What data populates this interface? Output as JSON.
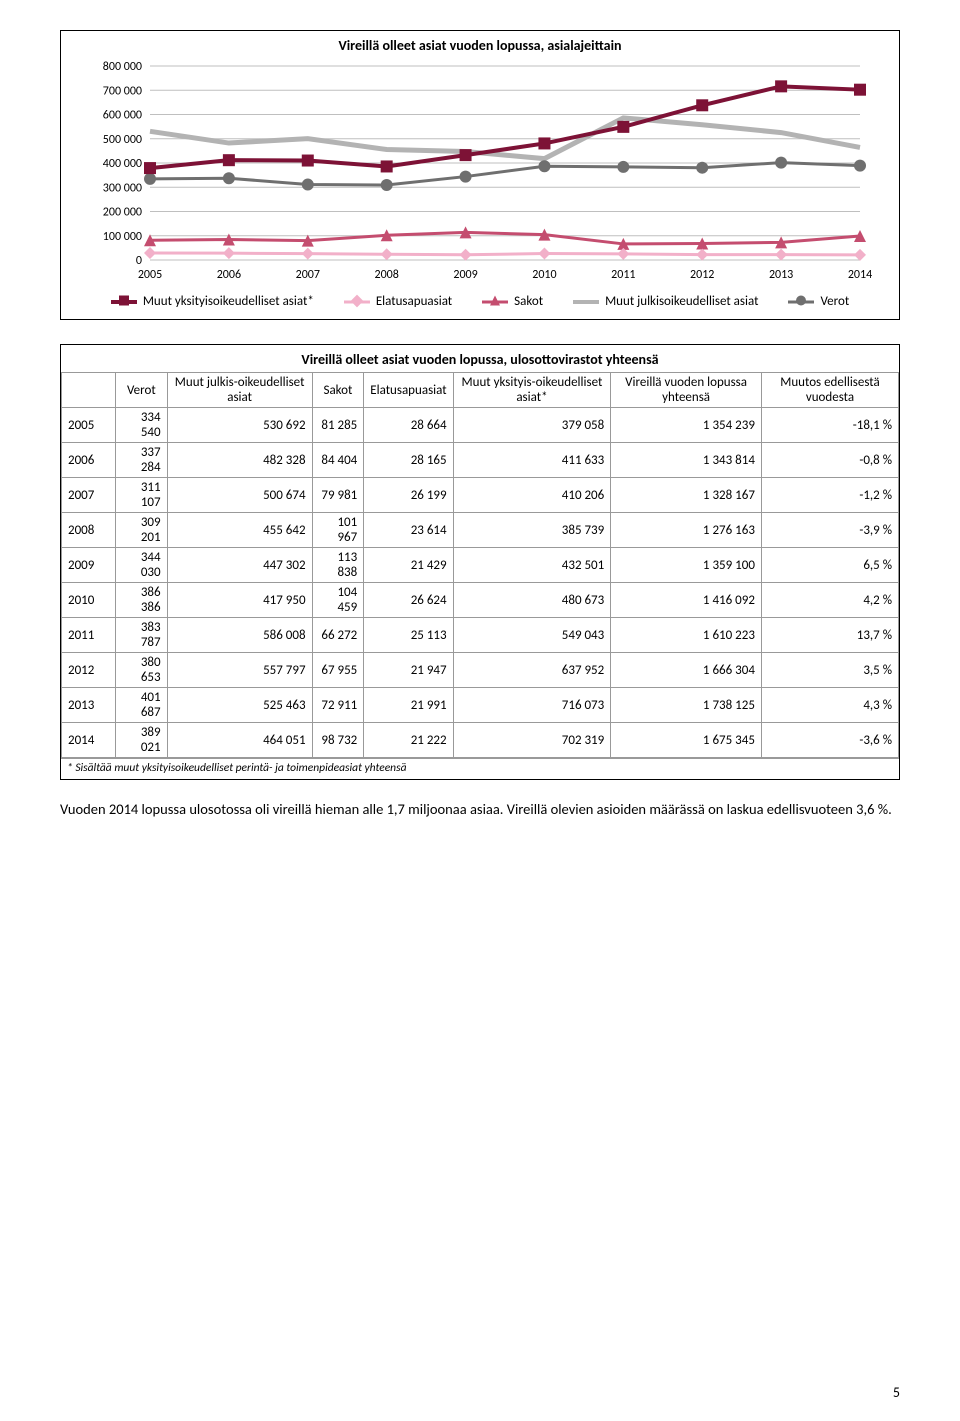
{
  "chart": {
    "title": "Vireillä olleet asiat vuoden lopussa, asialajeittain",
    "years": [
      "2005",
      "2006",
      "2007",
      "2008",
      "2009",
      "2010",
      "2011",
      "2012",
      "2013",
      "2014"
    ],
    "ylim": [
      0,
      800000
    ],
    "ytick_step": 100000,
    "ylabels": [
      "0",
      "100 000",
      "200 000",
      "300 000",
      "400 000",
      "500 000",
      "600 000",
      "700 000",
      "800 000"
    ],
    "grid_color": "#bfbfbf",
    "background_color": "#ffffff",
    "series": {
      "asiat_star": {
        "label": "Muut yksityisoikeudelliset asiat*",
        "color": "#7d1236",
        "marker": "square",
        "line_width": 4,
        "values": [
          379058,
          411633,
          410206,
          385739,
          432501,
          480673,
          549043,
          637952,
          716073,
          702319
        ]
      },
      "elatus": {
        "label": "Elatusapuasiat",
        "color": "#f2b0c9",
        "marker": "diamond",
        "line_width": 3,
        "values": [
          28664,
          28165,
          26199,
          23614,
          21429,
          26624,
          25113,
          21947,
          21991,
          21222
        ]
      },
      "sakot": {
        "label": "Sakot",
        "color": "#c44d6f",
        "marker": "triangle",
        "line_width": 3,
        "values": [
          81285,
          84404,
          79981,
          101967,
          113838,
          104459,
          66272,
          67955,
          72911,
          98732
        ]
      },
      "julkis": {
        "label": "Muut julkisoikeudelliset asiat",
        "color": "#b3b3b3",
        "marker": "none",
        "line_width": 5,
        "values": [
          530692,
          482328,
          500674,
          455642,
          447302,
          417950,
          586008,
          557797,
          525463,
          464051
        ]
      },
      "verot": {
        "label": "Verot",
        "color": "#6f6f6f",
        "marker": "circle",
        "line_width": 3,
        "values": [
          334540,
          337284,
          311107,
          309201,
          344030,
          386386,
          383787,
          380653,
          401687,
          389021
        ]
      }
    },
    "legend_order": [
      "asiat_star",
      "elatus",
      "sakot",
      "julkis",
      "verot"
    ]
  },
  "table": {
    "title": "Vireillä olleet asiat vuoden lopussa, ulosottovirastot yhteensä",
    "columns": [
      "Verot",
      "Muut julkis-oikeudelliset asiat",
      "Sakot",
      "Elatusapuasiat",
      "Muut yksityis-oikeudelliset asiat*",
      "Vireillä vuoden lopussa yhteensä",
      "Muutos edellisestä vuodesta"
    ],
    "rows": [
      {
        "year": "2005",
        "cells": [
          "334 540",
          "530 692",
          "81 285",
          "28 664",
          "379 058",
          "1 354 239",
          "-18,1 %"
        ]
      },
      {
        "year": "2006",
        "cells": [
          "337 284",
          "482 328",
          "84 404",
          "28 165",
          "411 633",
          "1 343 814",
          "-0,8 %"
        ]
      },
      {
        "year": "2007",
        "cells": [
          "311 107",
          "500 674",
          "79 981",
          "26 199",
          "410 206",
          "1 328 167",
          "-1,2 %"
        ]
      },
      {
        "year": "2008",
        "cells": [
          "309 201",
          "455 642",
          "101 967",
          "23 614",
          "385 739",
          "1 276 163",
          "-3,9 %"
        ]
      },
      {
        "year": "2009",
        "cells": [
          "344 030",
          "447 302",
          "113 838",
          "21 429",
          "432 501",
          "1 359 100",
          "6,5 %"
        ]
      },
      {
        "year": "2010",
        "cells": [
          "386 386",
          "417 950",
          "104 459",
          "26 624",
          "480 673",
          "1 416 092",
          "4,2 %"
        ]
      },
      {
        "year": "2011",
        "cells": [
          "383 787",
          "586 008",
          "66 272",
          "25 113",
          "549 043",
          "1 610 223",
          "13,7 %"
        ]
      },
      {
        "year": "2012",
        "cells": [
          "380 653",
          "557 797",
          "67 955",
          "21 947",
          "637 952",
          "1 666 304",
          "3,5 %"
        ]
      },
      {
        "year": "2013",
        "cells": [
          "401 687",
          "525 463",
          "72 911",
          "21 991",
          "716 073",
          "1 738 125",
          "4,3 %"
        ]
      },
      {
        "year": "2014",
        "cells": [
          "389 021",
          "464 051",
          "98 732",
          "21 222",
          "702 319",
          "1 675 345",
          "-3,6 %"
        ]
      }
    ],
    "footnote": "* Sisältää muut yksityisoikeudelliset perintä- ja toimenpideasiat yhteensä"
  },
  "body_text": "Vuoden 2014 lopussa ulosotossa oli vireillä hieman alle 1,7 miljoonaa asiaa. Vireillä olevien asioiden määrässä on laskua edellisvuoteen 3,6 %.",
  "pagenum": "5"
}
